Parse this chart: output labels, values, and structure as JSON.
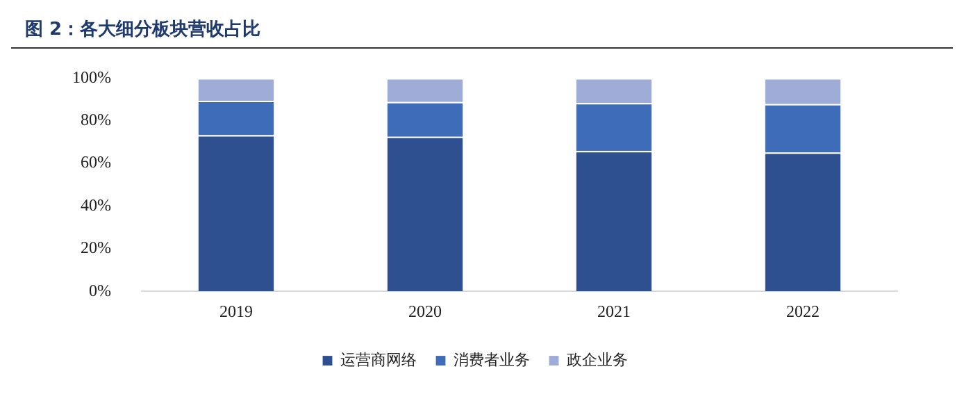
{
  "chart_data": {
    "type": "bar",
    "title": "图 2：各大细分板块营收占比",
    "stacked": true,
    "categories": [
      "2019",
      "2020",
      "2021",
      "2022"
    ],
    "series": [
      {
        "name": "运营商网络",
        "color": "#2e5090",
        "values": [
          73.2,
          72.5,
          65.8,
          65.1
        ]
      },
      {
        "name": "消费者业务",
        "color": "#3f6cb8",
        "values": [
          16.2,
          16.3,
          22.5,
          22.7
        ]
      },
      {
        "name": "政企业务",
        "color": "#a0acd8",
        "values": [
          10.6,
          11.2,
          11.7,
          12.2
        ]
      }
    ],
    "ylim": [
      0,
      100
    ],
    "yticks": [
      {
        "value": 0,
        "label": "0%"
      },
      {
        "value": 20,
        "label": "20%"
      },
      {
        "value": 40,
        "label": "40%"
      },
      {
        "value": 60,
        "label": "60%"
      },
      {
        "value": 80,
        "label": "80%"
      },
      {
        "value": 100,
        "label": "100%"
      }
    ],
    "grid": false,
    "legend": "bottom"
  }
}
